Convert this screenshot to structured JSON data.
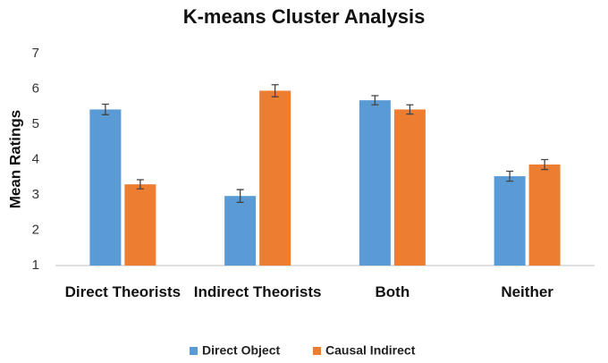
{
  "chart_data": {
    "type": "bar",
    "title": "K-means Cluster Analysis",
    "y_label": "Mean Ratings",
    "categories": [
      "Direct Theorists",
      "Indirect Theorists",
      "Both",
      "Neither"
    ],
    "series": [
      {
        "name": "Direct Object",
        "color": "#5b9bd5",
        "values": [
          5.42,
          2.97,
          5.68,
          3.53
        ],
        "errors": [
          0.15,
          0.18,
          0.13,
          0.14
        ]
      },
      {
        "name": "Causal Indirect",
        "color": "#ed7d31",
        "values": [
          3.3,
          5.95,
          5.42,
          3.86
        ],
        "errors": [
          0.13,
          0.17,
          0.13,
          0.14
        ]
      }
    ],
    "ylim": [
      1,
      7
    ],
    "yticks": [
      1,
      2,
      3,
      4,
      5,
      6,
      7
    ],
    "legend": "bottom"
  }
}
